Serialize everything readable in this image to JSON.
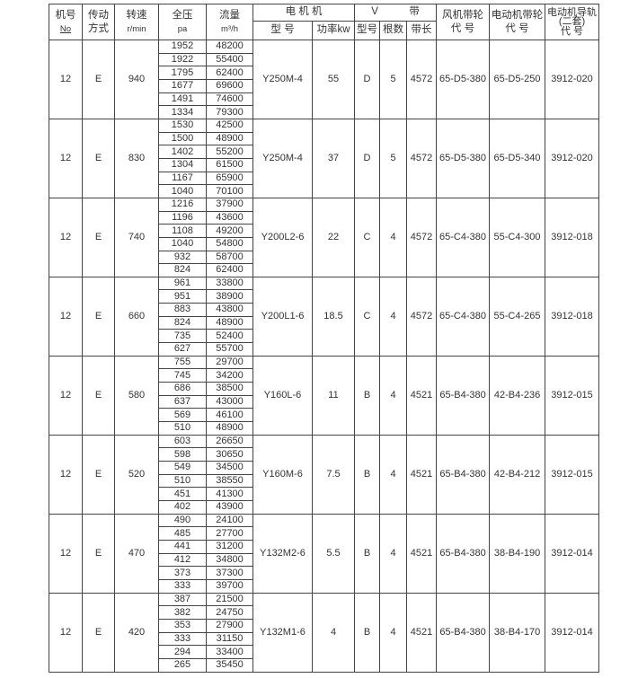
{
  "header": {
    "machine_no": "机号",
    "machine_no_sub": "No",
    "drive": "传动",
    "drive_sub": "方式",
    "speed": "转速",
    "speed_sub": "r/min",
    "pressure": "全压",
    "pressure_sub": "pa",
    "flow": "流量",
    "flow_sub": "m³/h",
    "motor": "电 机 机",
    "motor_model": "型 号",
    "motor_power": "功率kw",
    "vbelt": "V　　　带",
    "vbelt_type": "型号",
    "vbelt_count": "根数",
    "vbelt_length": "带长",
    "fan_pulley": "风机带轮",
    "fan_pulley_sub": "代 号",
    "motor_pulley": "电动机带轮",
    "motor_pulley_sub": "代 号",
    "rail": "电动机导轨",
    "rail_mid": "(二套)",
    "rail_sub": "代 号"
  },
  "groups": [
    {
      "no": "12",
      "drive": "E",
      "speed": "940",
      "pressure": [
        "1952",
        "1922",
        "1795",
        "1677",
        "1491",
        "1334"
      ],
      "flow": [
        "48200",
        "55400",
        "62400",
        "69600",
        "74600",
        "79300"
      ],
      "model": "Y250M-4",
      "power": "55",
      "belt_type": "D",
      "belt_count": "5",
      "belt_length": "4572",
      "fan_pulley": "65-D5-380",
      "motor_pulley": "65-D5-250",
      "rail": "3912-020"
    },
    {
      "no": "12",
      "drive": "E",
      "speed": "830",
      "pressure": [
        "1530",
        "1500",
        "1402",
        "1304",
        "1167",
        "1040"
      ],
      "flow": [
        "42500",
        "48900",
        "55200",
        "61500",
        "65900",
        "70100"
      ],
      "model": "Y250M-4",
      "power": "37",
      "belt_type": "D",
      "belt_count": "5",
      "belt_length": "4572",
      "fan_pulley": "65-D5-380",
      "motor_pulley": "65-D5-340",
      "rail": "3912-020"
    },
    {
      "no": "12",
      "drive": "E",
      "speed": "740",
      "pressure": [
        "1216",
        "1196",
        "1108",
        "1040",
        "932",
        "824"
      ],
      "flow": [
        "37900",
        "43600",
        "49200",
        "54800",
        "58700",
        "62400"
      ],
      "model": "Y200L2-6",
      "power": "22",
      "belt_type": "C",
      "belt_count": "4",
      "belt_length": "4572",
      "fan_pulley": "65-C4-380",
      "motor_pulley": "55-C4-300",
      "rail": "3912-018"
    },
    {
      "no": "12",
      "drive": "E",
      "speed": "660",
      "pressure": [
        "961",
        "951",
        "883",
        "824",
        "735",
        "627"
      ],
      "flow": [
        "33800",
        "38900",
        "43800",
        "48900",
        "52400",
        "55700"
      ],
      "model": "Y200L1-6",
      "power": "18.5",
      "belt_type": "C",
      "belt_count": "4",
      "belt_length": "4572",
      "fan_pulley": "65-C4-380",
      "motor_pulley": "55-C4-265",
      "rail": "3912-018"
    },
    {
      "no": "12",
      "drive": "E",
      "speed": "580",
      "pressure": [
        "755",
        "745",
        "686",
        "637",
        "569",
        "510"
      ],
      "flow": [
        "29700",
        "34200",
        "38500",
        "43000",
        "46100",
        "48900"
      ],
      "model": "Y160L-6",
      "power": "11",
      "belt_type": "B",
      "belt_count": "4",
      "belt_length": "4521",
      "fan_pulley": "65-B4-380",
      "motor_pulley": "42-B4-236",
      "rail": "3912-015"
    },
    {
      "no": "12",
      "drive": "E",
      "speed": "520",
      "pressure": [
        "603",
        "598",
        "549",
        "510",
        "451",
        "402"
      ],
      "flow": [
        "26650",
        "30650",
        "34500",
        "38550",
        "41300",
        "43900"
      ],
      "model": "Y160M-6",
      "power": "7.5",
      "belt_type": "B",
      "belt_count": "4",
      "belt_length": "4521",
      "fan_pulley": "65-B4-380",
      "motor_pulley": "42-B4-212",
      "rail": "3912-015"
    },
    {
      "no": "12",
      "drive": "E",
      "speed": "470",
      "pressure": [
        "490",
        "485",
        "441",
        "412",
        "373",
        "333"
      ],
      "flow": [
        "24100",
        "27700",
        "31200",
        "34800",
        "37300",
        "39700"
      ],
      "model": "Y132M2-6",
      "power": "5.5",
      "belt_type": "B",
      "belt_count": "4",
      "belt_length": "4521",
      "fan_pulley": "65-B4-380",
      "motor_pulley": "38-B4-190",
      "rail": "3912-014"
    },
    {
      "no": "12",
      "drive": "E",
      "speed": "420",
      "pressure": [
        "387",
        "382",
        "353",
        "333",
        "294",
        "265"
      ],
      "flow": [
        "21500",
        "24750",
        "27900",
        "31150",
        "33400",
        "35450"
      ],
      "model": "Y132M1-6",
      "power": "4",
      "belt_type": "B",
      "belt_count": "4",
      "belt_length": "4521",
      "fan_pulley": "65-B4-380",
      "motor_pulley": "38-B4-170",
      "rail": "3912-014"
    }
  ]
}
